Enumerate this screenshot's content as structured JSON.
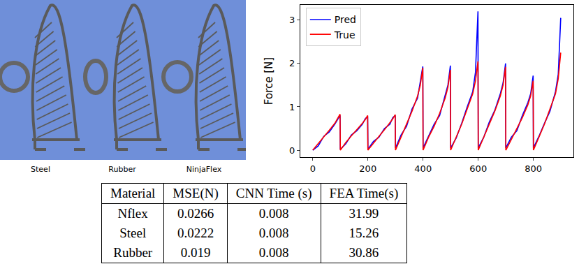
{
  "chart_data": {
    "type": "line",
    "y_label": "Force [N]",
    "x": [
      0,
      20,
      40,
      60,
      80,
      90,
      99,
      100,
      120,
      140,
      160,
      180,
      190,
      199,
      200,
      220,
      240,
      260,
      280,
      290,
      299,
      300,
      320,
      340,
      360,
      380,
      390,
      399,
      400,
      420,
      440,
      460,
      480,
      490,
      499,
      500,
      520,
      540,
      560,
      580,
      590,
      599,
      600,
      620,
      640,
      660,
      680,
      690,
      699,
      700,
      720,
      740,
      760,
      780,
      790,
      799,
      800,
      820,
      840,
      860,
      880,
      890,
      899
    ],
    "series": [
      {
        "name": "Pred",
        "color": "#0000ff",
        "values": [
          0,
          0.1,
          0.32,
          0.42,
          0.6,
          0.7,
          0.8,
          0.02,
          0.15,
          0.35,
          0.45,
          0.6,
          0.72,
          0.78,
          0.02,
          0.2,
          0.3,
          0.5,
          0.6,
          0.75,
          0.8,
          0.05,
          0.35,
          0.55,
          0.95,
          1.2,
          1.6,
          1.93,
          0.05,
          0.32,
          0.6,
          0.8,
          1.25,
          1.5,
          1.95,
          0.05,
          0.28,
          0.62,
          1.0,
          1.35,
          1.8,
          3.2,
          0.05,
          0.3,
          0.65,
          0.92,
          1.3,
          1.55,
          2.0,
          0.05,
          0.3,
          0.45,
          0.8,
          1.1,
          1.3,
          1.72,
          0.05,
          0.32,
          0.62,
          0.9,
          1.35,
          1.75,
          3.05
        ]
      },
      {
        "name": "True",
        "color": "#ff0000",
        "values": [
          0,
          0.15,
          0.3,
          0.46,
          0.62,
          0.72,
          0.83,
          0,
          0.18,
          0.33,
          0.47,
          0.62,
          0.7,
          0.8,
          0,
          0.17,
          0.32,
          0.47,
          0.63,
          0.72,
          0.82,
          0,
          0.3,
          0.6,
          0.9,
          1.25,
          1.5,
          1.9,
          0,
          0.3,
          0.55,
          0.85,
          1.2,
          1.45,
          1.85,
          0,
          0.3,
          0.6,
          0.95,
          1.3,
          1.6,
          2.05,
          0,
          0.3,
          0.6,
          0.9,
          1.25,
          1.5,
          1.92,
          0,
          0.25,
          0.5,
          0.75,
          1.05,
          1.25,
          1.6,
          0,
          0.3,
          0.6,
          0.95,
          1.3,
          1.65,
          2.25
        ]
      }
    ],
    "xlim": [
      -45,
      945
    ],
    "xticks": [
      0,
      200,
      400,
      600,
      800
    ],
    "ylim": [
      -0.16,
      3.35
    ],
    "yticks": [
      0,
      1,
      2,
      3
    ],
    "grid": false,
    "legend": "upper left"
  },
  "images": {
    "labels": [
      "Steel",
      "Rubber",
      "NinjaFlex"
    ]
  },
  "table": {
    "header": [
      "Material",
      "MSE(N)",
      "CNN Time (s)",
      "FEA Time(s)"
    ],
    "rows": [
      [
        "Nflex",
        "0.0266",
        "0.008",
        "31.99"
      ],
      [
        "Steel",
        "0.0222",
        "0.008",
        "15.26"
      ],
      [
        "Rubber",
        "0.019",
        "0.008",
        "30.86"
      ]
    ]
  }
}
